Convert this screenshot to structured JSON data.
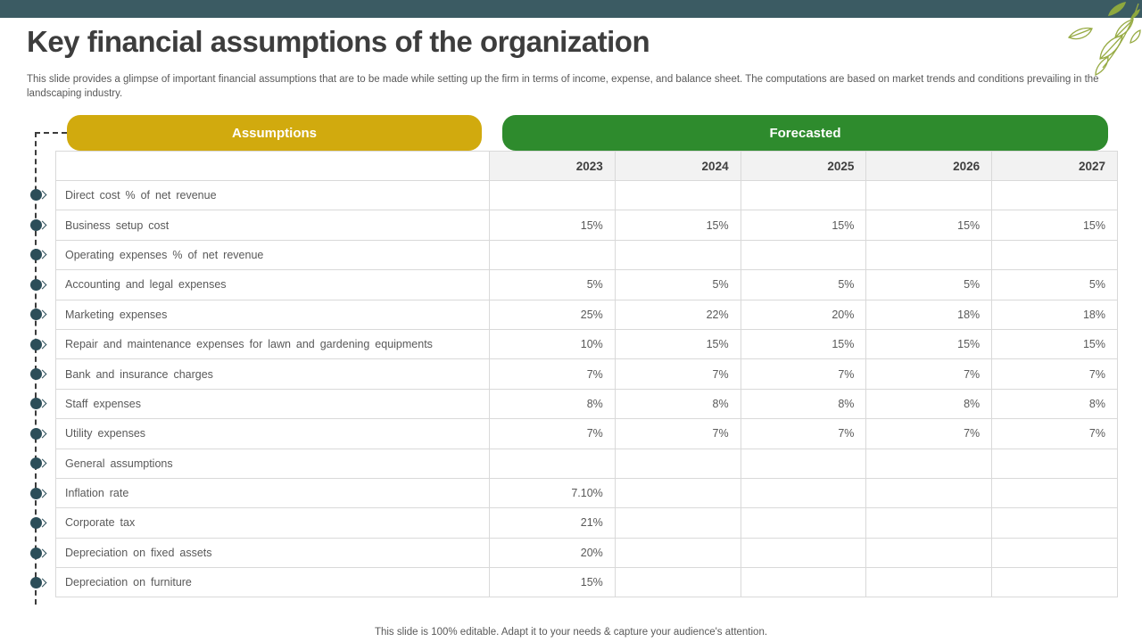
{
  "slide": {
    "title": "Key financial assumptions of the organization",
    "subtitle": "This slide provides a glimpse of important financial assumptions that are to be made while setting up the firm in terms of income, expense, and balance sheet. The computations are based on market trends and conditions prevailing in the landscaping industry.",
    "footer": "This slide is 100% editable. Adapt it to your needs & capture your audience's attention."
  },
  "table": {
    "group_headers": {
      "assumptions": "Assumptions",
      "forecasted": "Forecasted"
    },
    "years": [
      "2023",
      "2024",
      "2025",
      "2026",
      "2027"
    ],
    "rows": [
      {
        "label": "Direct cost % of net revenue",
        "values": [
          "",
          "",
          "",
          "",
          ""
        ]
      },
      {
        "label": "Business setup cost",
        "values": [
          "15%",
          "15%",
          "15%",
          "15%",
          "15%"
        ]
      },
      {
        "label": "Operating expenses % of net revenue",
        "values": [
          "",
          "",
          "",
          "",
          ""
        ]
      },
      {
        "label": "Accounting and legal expenses",
        "values": [
          "5%",
          "5%",
          "5%",
          "5%",
          "5%"
        ]
      },
      {
        "label": "Marketing expenses",
        "values": [
          "25%",
          "22%",
          "20%",
          "18%",
          "18%"
        ]
      },
      {
        "label": "Repair and maintenance expenses for lawn and gardening equipments",
        "values": [
          "10%",
          "15%",
          "15%",
          "15%",
          "15%"
        ]
      },
      {
        "label": "Bank and insurance charges",
        "values": [
          "7%",
          "7%",
          "7%",
          "7%",
          "7%"
        ]
      },
      {
        "label": "Staff expenses",
        "values": [
          "8%",
          "8%",
          "8%",
          "8%",
          "8%"
        ]
      },
      {
        "label": "Utility expenses",
        "values": [
          "7%",
          "7%",
          "7%",
          "7%",
          "7%"
        ]
      },
      {
        "label": "General assumptions",
        "values": [
          "",
          "",
          "",
          "",
          ""
        ]
      },
      {
        "label": "Inflation rate",
        "values": [
          "7.10%",
          "",
          "",
          "",
          ""
        ]
      },
      {
        "label": "Corporate tax",
        "values": [
          "21%",
          "",
          "",
          "",
          ""
        ]
      },
      {
        "label": "Depreciation on fixed assets",
        "values": [
          "20%",
          "",
          "",
          "",
          ""
        ]
      },
      {
        "label": "Depreciation on furniture",
        "values": [
          "15%",
          "",
          "",
          "",
          ""
        ]
      }
    ]
  },
  "colors": {
    "top_bar": "#3b5b63",
    "assumptions_pill": "#d1aa0e",
    "forecasted_pill": "#2e8b2d",
    "bullet": "#2c4e59",
    "leaf_accent": "#97ab44",
    "header_row_bg": "#f2f2f2",
    "grid_border": "#d9d9d9",
    "body_text": "#595959",
    "title_text": "#3d3d3d"
  }
}
